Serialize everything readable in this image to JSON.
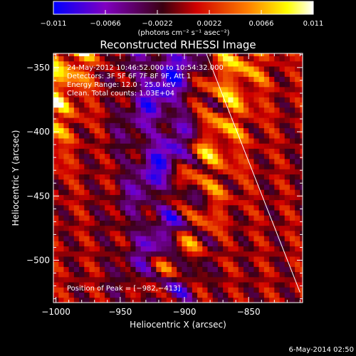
{
  "chart_data": {
    "type": "heatmap",
    "title": "Reconstructed RHESSI Image",
    "xlabel": "Heliocentric X (arcsec)",
    "ylabel": "Heliocentric Y (arcsec)",
    "xlim": [
      -1002,
      -808
    ],
    "ylim": [
      -533,
      -339
    ],
    "x_ticks": [
      -1000,
      -950,
      -900,
      -850
    ],
    "x_tick_labels": [
      "−1000",
      "−950",
      "−900",
      "−850"
    ],
    "y_ticks": [
      -500,
      -450,
      -400,
      -350
    ],
    "y_tick_labels": [
      "−500",
      "−450",
      "−400",
      "−350"
    ],
    "colorbar": {
      "min": -0.011,
      "max": 0.011,
      "ticks": [
        -0.011,
        -0.0066,
        -0.0022,
        0.0022,
        0.0066,
        0.011
      ],
      "tick_labels": [
        "−0.011",
        "−0.0066",
        "−0.0022",
        "0.0022",
        "0.0066",
        "0.011"
      ],
      "unit_label": "(photons cm⁻² s⁻¹ asec⁻²)",
      "colormap": [
        "#0000ff",
        "#8000c0",
        "#3a0010",
        "#d00000",
        "#ff8000",
        "#ffff00",
        "#ffffff"
      ]
    },
    "annotations": [
      "24-May-2012 10:46:52.000 to 10:54:32.000",
      "Detectors: 3F 5F 6F 7F 8F 9F, Att 1",
      "Energy Range: 12.0 - 25.0 keV",
      "Clean.  Total counts: 1.03E+04"
    ],
    "peak_label": "Position of Peak = [−982,−413]",
    "peak": {
      "x": -982,
      "y": -413
    },
    "limb_line": [
      {
        "x": -883,
        "y": -339
      },
      {
        "x": -810,
        "y": -525
      }
    ],
    "stripes": [
      {
        "x_at_top": -990,
        "slope_x_per_y": -0.4,
        "period": 25,
        "amplitude": 0.0105
      },
      {
        "x_at_top": -858,
        "slope_x_per_y": -0.3,
        "period": 27,
        "amplitude": 0.009
      }
    ],
    "trough": {
      "x_center": -915,
      "amplitude": -0.0095
    }
  },
  "footer": {
    "date": "6-May-2014 02:50"
  }
}
